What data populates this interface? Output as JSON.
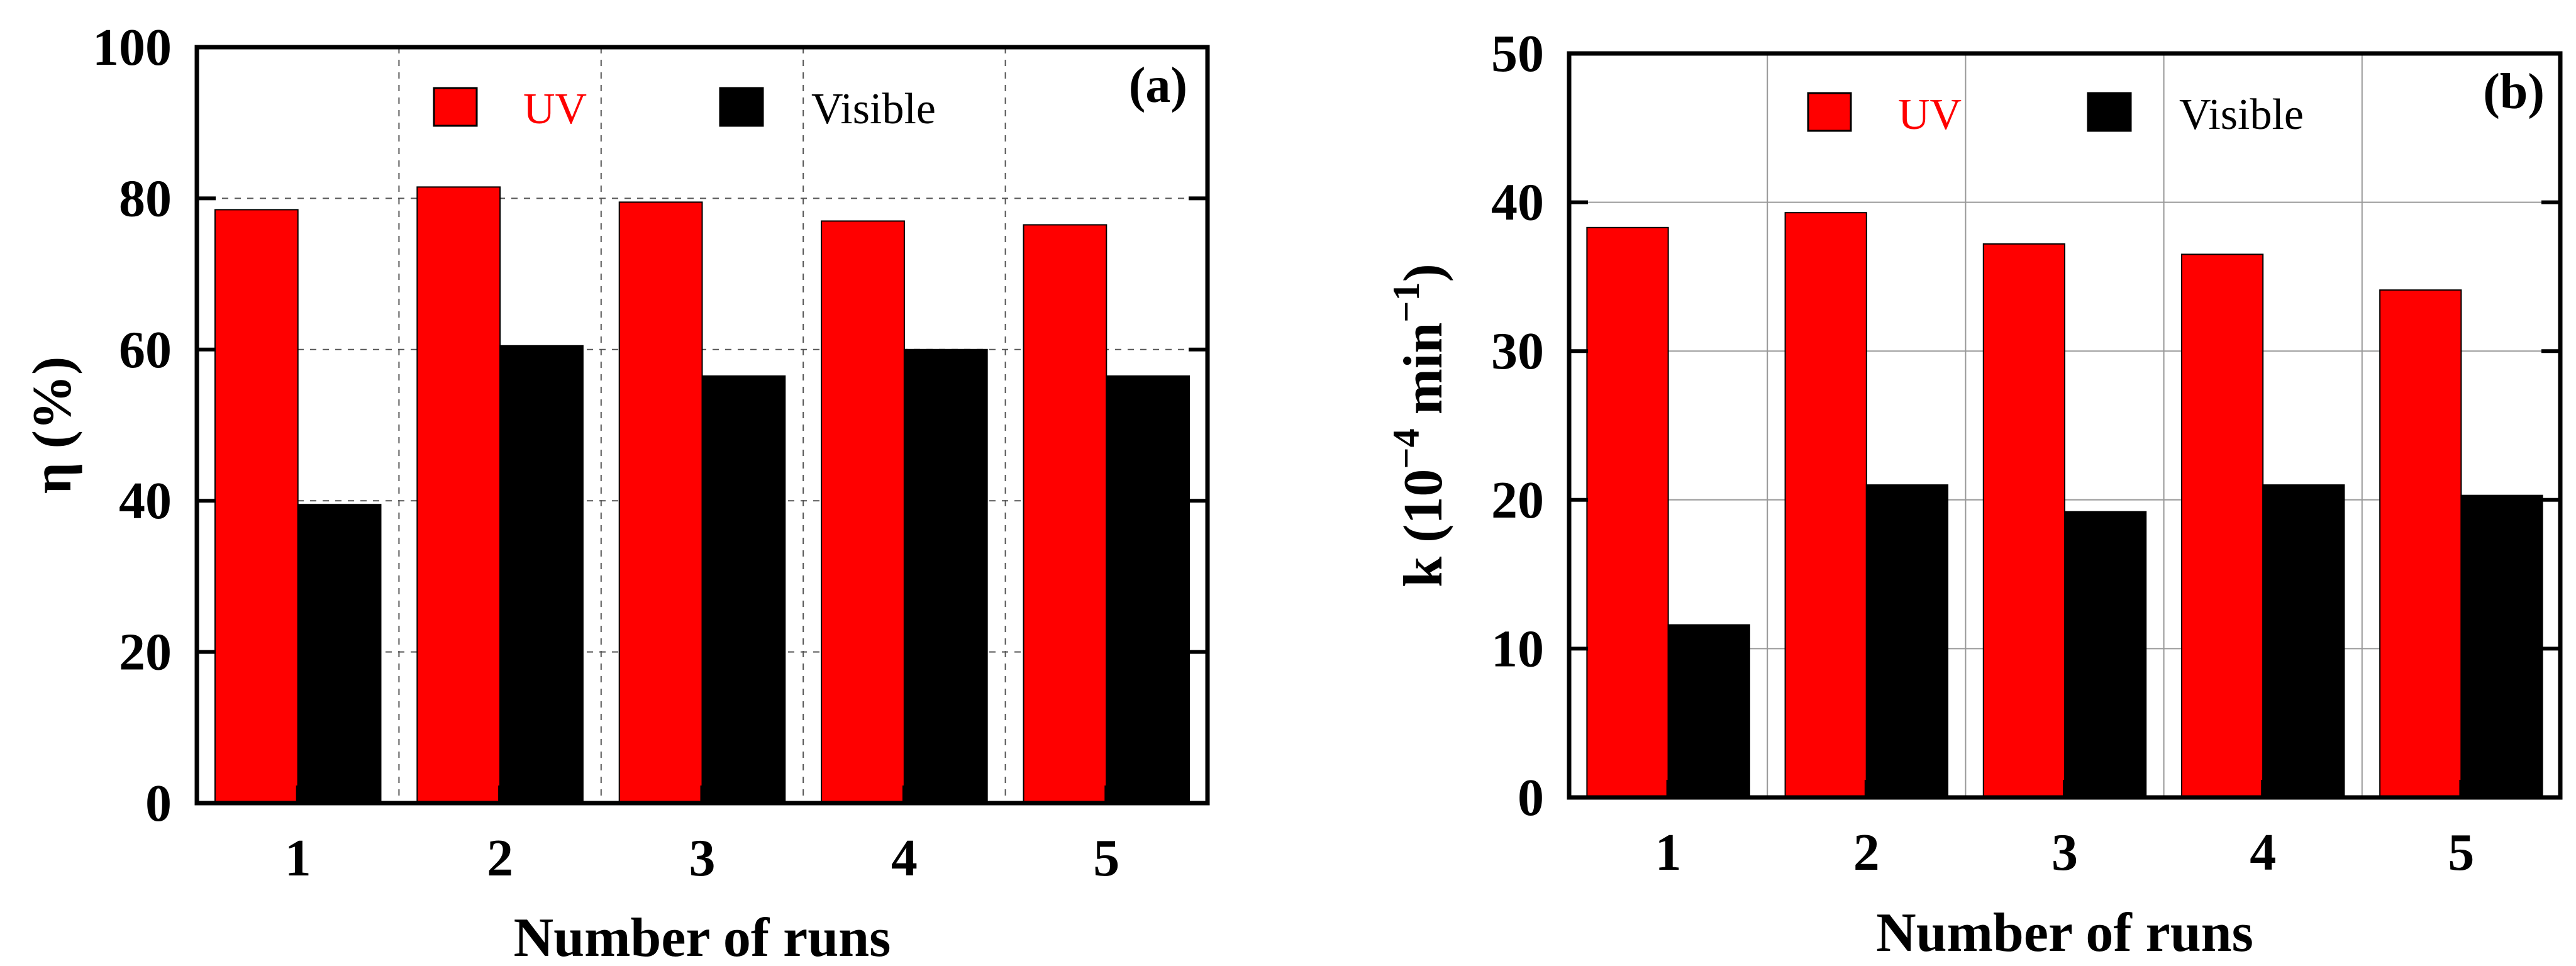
{
  "chart_data": [
    {
      "type": "bar",
      "panel_label": "(a)",
      "categories": [
        "1",
        "2",
        "3",
        "4",
        "5"
      ],
      "series": [
        {
          "name": "UV",
          "color": "#ff0000",
          "values": [
            78.5,
            81.5,
            79.5,
            77.0,
            76.5
          ]
        },
        {
          "name": "Visible",
          "color": "#000000",
          "values": [
            39.5,
            60.5,
            56.5,
            60.0,
            56.5
          ]
        }
      ],
      "xlabel": "Number of runs",
      "ylabel": "η (%)",
      "ylim": [
        0,
        100
      ],
      "yticks": [
        "0",
        "20",
        "40",
        "60",
        "80",
        "100"
      ],
      "grid": true,
      "grid_style": "dashed",
      "legend_position": "top"
    },
    {
      "type": "bar",
      "panel_label": "(b)",
      "categories": [
        "1",
        "2",
        "3",
        "4",
        "5"
      ],
      "series": [
        {
          "name": "UV",
          "color": "#ff0000",
          "values": [
            38.3,
            39.3,
            37.2,
            36.5,
            34.1
          ]
        },
        {
          "name": "Visible",
          "color": "#000000",
          "values": [
            11.6,
            21.0,
            19.2,
            21.0,
            20.3
          ]
        }
      ],
      "xlabel": "Number of runs",
      "ylabel": "k (10",
      "ylabel_superscript": "−4",
      "ylabel_unit": " min",
      "ylabel_unit_superscript": "−1",
      "ylabel_close": ")",
      "ylim": [
        0,
        50
      ],
      "yticks": [
        "0",
        "10",
        "20",
        "30",
        "40",
        "50"
      ],
      "grid": true,
      "grid_style": "solid",
      "legend_position": "top"
    }
  ]
}
